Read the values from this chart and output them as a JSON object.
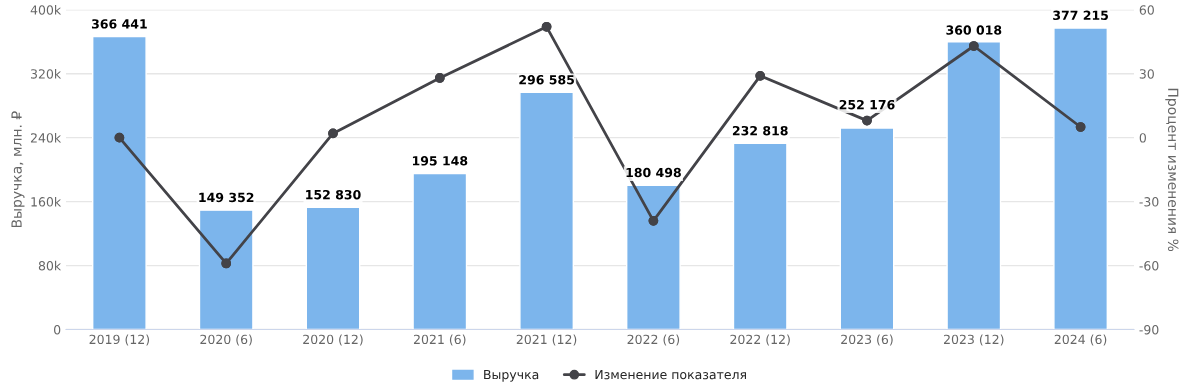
{
  "chart_data": {
    "type": "bar",
    "categories": [
      "2019 (12)",
      "2020 (6)",
      "2020 (12)",
      "2021 (6)",
      "2021 (12)",
      "2022 (6)",
      "2022 (12)",
      "2023 (6)",
      "2023 (12)",
      "2024 (6)"
    ],
    "ylabel": "Выручка, млн. ₽",
    "y2label": "Процент изменения %",
    "ylim": [
      0,
      400000
    ],
    "yticks": [
      {
        "value": 0,
        "label": "0"
      },
      {
        "value": 80000,
        "label": "80k"
      },
      {
        "value": 160000,
        "label": "160k"
      },
      {
        "value": 240000,
        "label": "240k"
      },
      {
        "value": 320000,
        "label": "320k"
      },
      {
        "value": 400000,
        "label": "400k"
      }
    ],
    "y2lim": [
      -90,
      60
    ],
    "y2ticks": [
      -90,
      -60,
      -30,
      0,
      30,
      60
    ],
    "grid": "y",
    "legend": "bottom",
    "series": [
      {
        "name": "Выручка",
        "color": "#7cb5ec",
        "values": [
          366441,
          149352,
          152830,
          195148,
          296585,
          180498,
          232818,
          252176,
          360018,
          377215
        ],
        "value_labels": [
          "366 441",
          "149 352",
          "152 830",
          "195 148",
          "296 585",
          "180 498",
          "232 818",
          "252 176",
          "360 018",
          "377 215"
        ]
      },
      {
        "name": "Изменение показателя",
        "type": "line",
        "axis": "y2",
        "color": "#434348",
        "marker": "circle",
        "values": [
          0,
          -59,
          2,
          28,
          52,
          -39,
          29,
          8,
          43,
          5
        ]
      }
    ]
  }
}
